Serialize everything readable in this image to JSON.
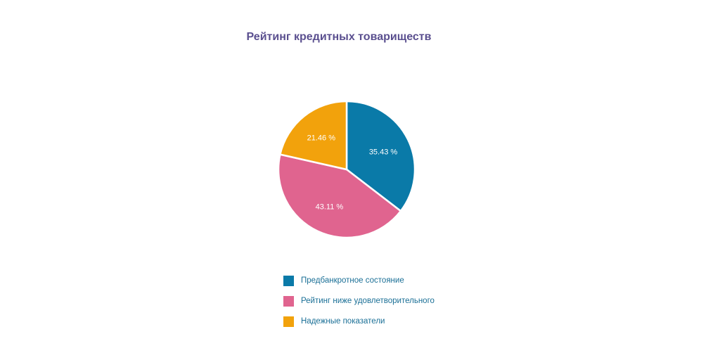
{
  "chart_data": {
    "type": "pie",
    "title": "Рейтинг кредитных товариществ",
    "slices": [
      {
        "label": "Предбанкротное состояние",
        "value": 35.43,
        "display": "35.43 %",
        "color": "#0a7aa8"
      },
      {
        "label": "Рейтинг ниже удовлетворительного",
        "value": 43.11,
        "display": "43.11 %",
        "color": "#e0648f"
      },
      {
        "label": "Надежные показатели",
        "value": 21.46,
        "display": "21.46 %",
        "color": "#f2a20c"
      }
    ],
    "start_angle": "12 o'clock",
    "direction": "clockwise",
    "legend_position": "bottom"
  }
}
